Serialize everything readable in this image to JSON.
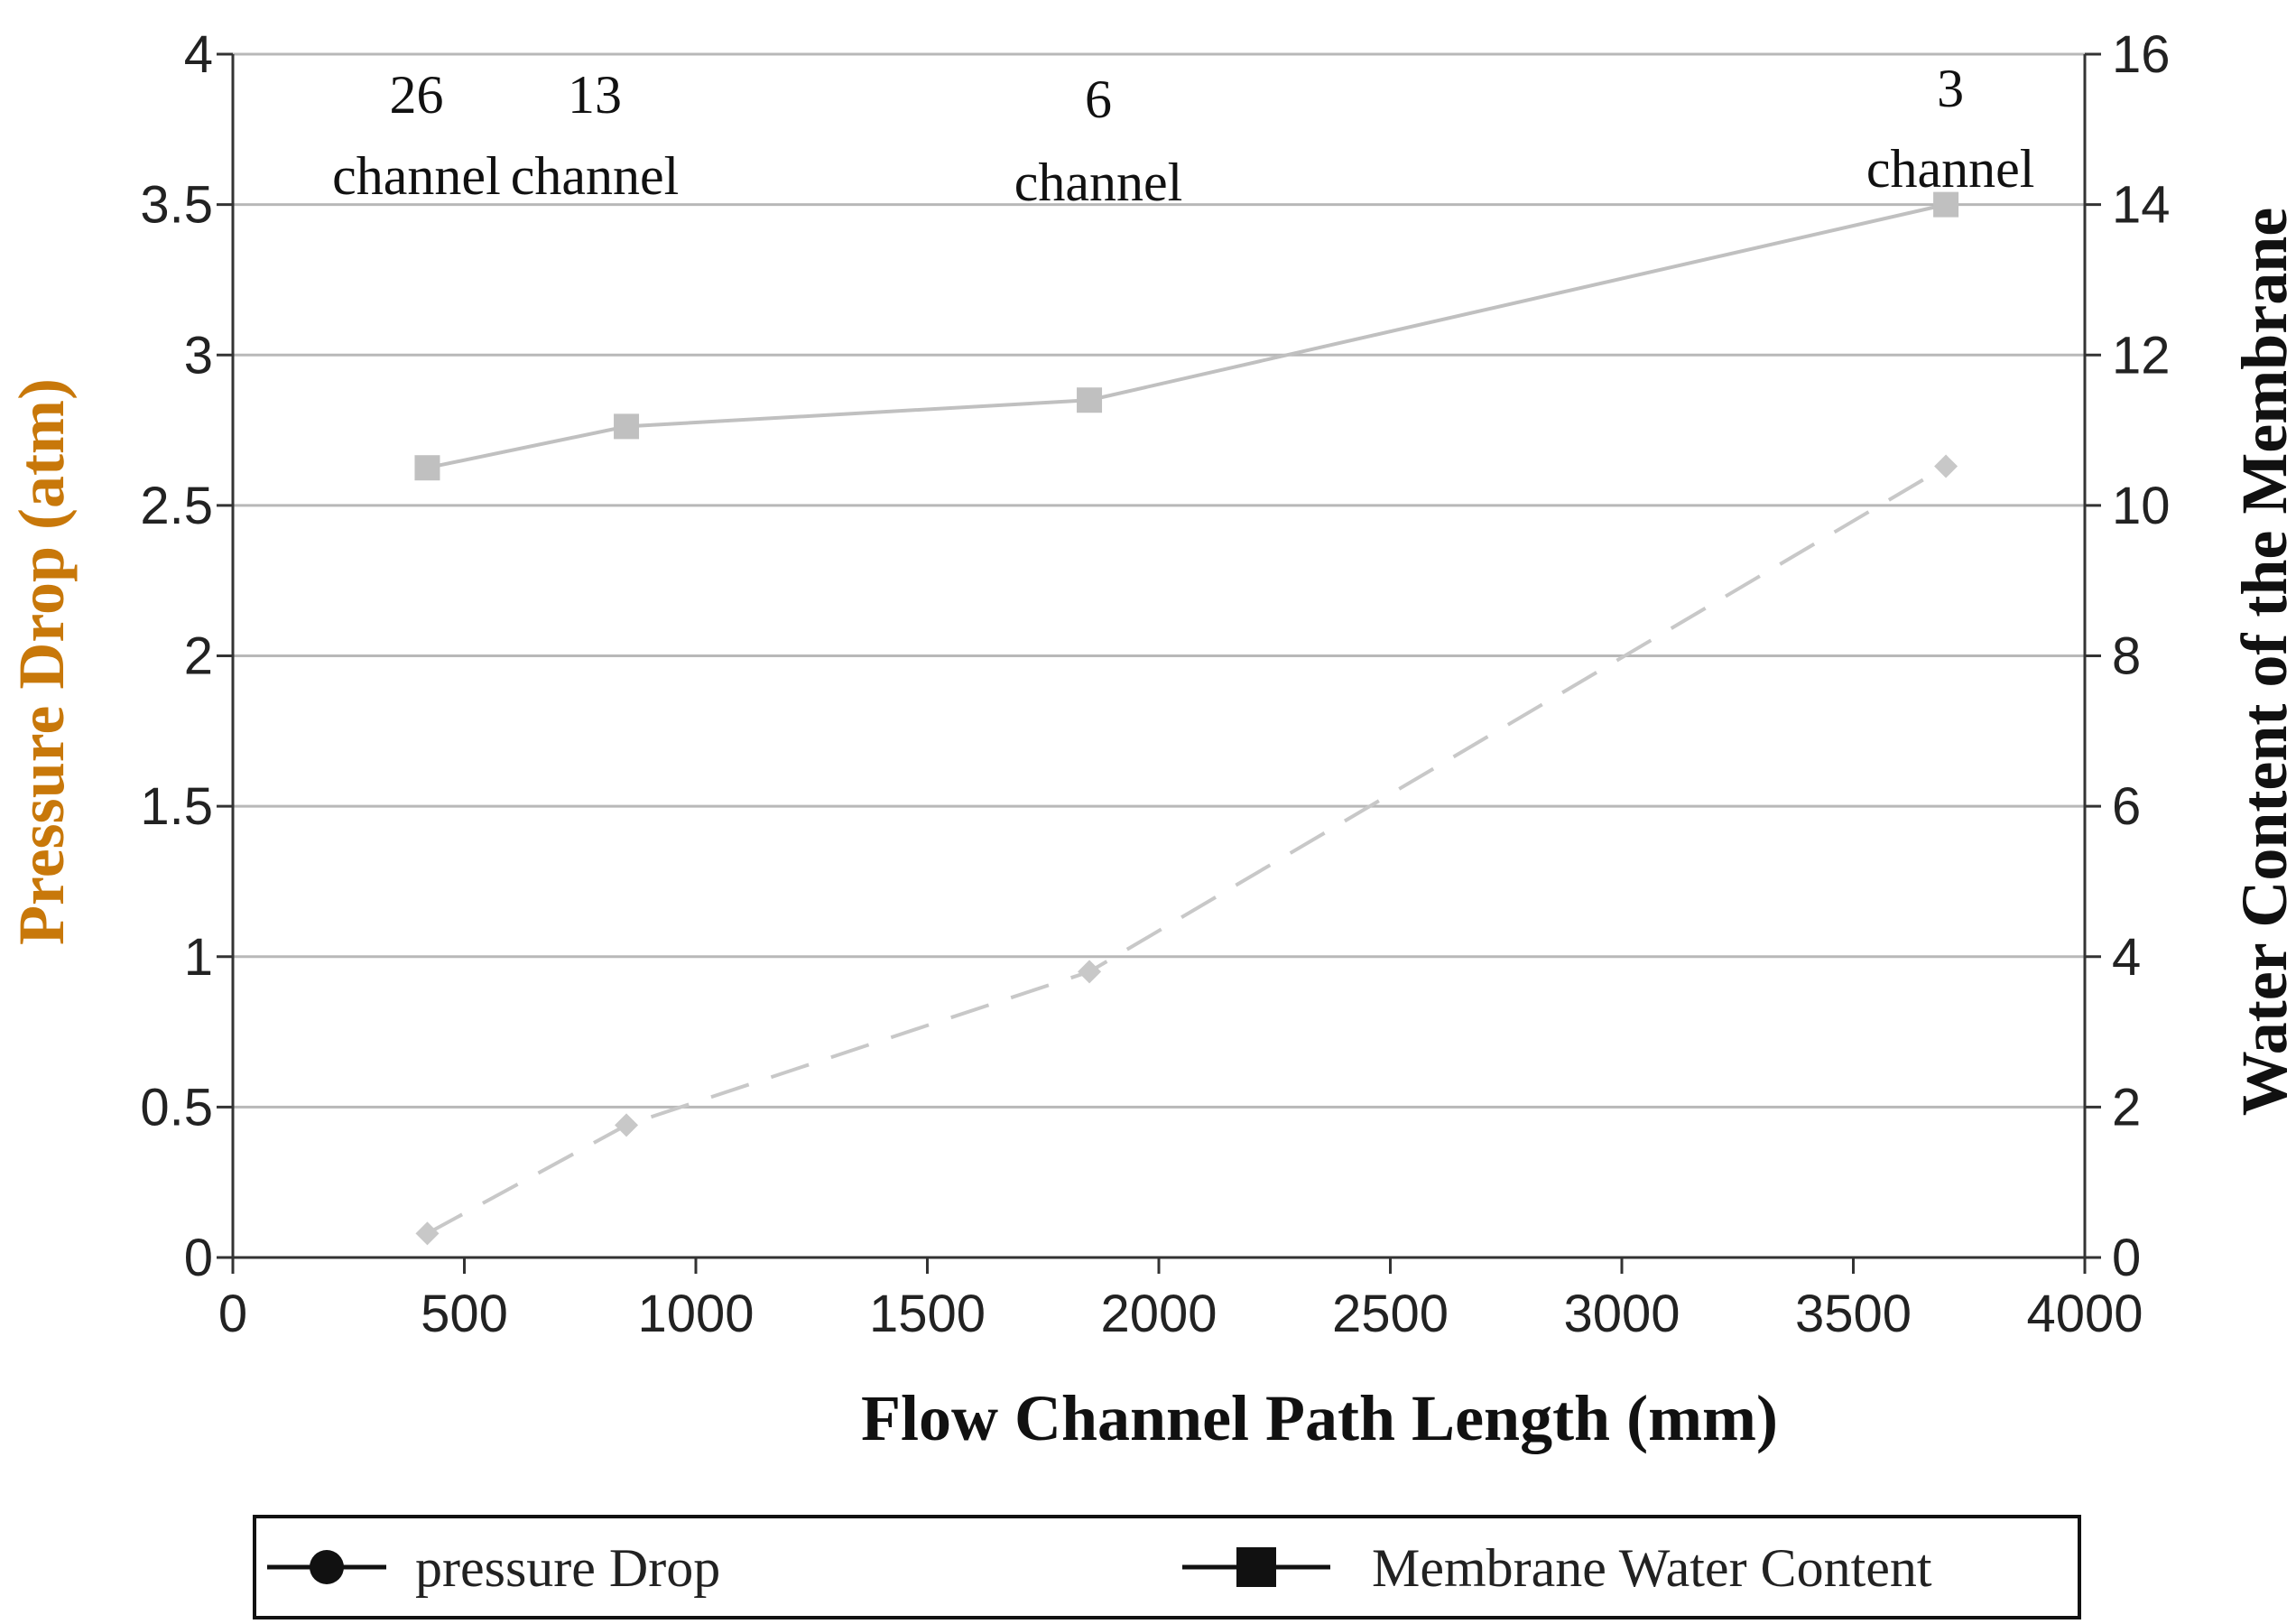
{
  "chart_data": {
    "type": "line",
    "xlabel": "Flow Channel Path Length (mm)",
    "ylabel_left": "Pressure Drop (atm)",
    "ylabel_right": "Water Content of the Membrane",
    "xlim": [
      0,
      4000
    ],
    "ylim_left": [
      0,
      4
    ],
    "ylim_right": [
      0,
      16
    ],
    "x_ticks": [
      "0",
      "500",
      "1000",
      "1500",
      "2000",
      "2500",
      "3000",
      "3500",
      "4000"
    ],
    "y_left_ticks": [
      "0",
      "0.5",
      "1",
      "1.5",
      "2",
      "2.5",
      "3",
      "3.5",
      "4"
    ],
    "y_right_ticks": [
      "0",
      "2",
      "4",
      "6",
      "8",
      "10",
      "12",
      "14",
      "16"
    ],
    "grid": true,
    "series": [
      {
        "name": "pressure Drop",
        "axis": "left",
        "style": "dashed",
        "marker": "diamond",
        "color": "#c8c8c8",
        "x": [
          420,
          850,
          1850,
          3700
        ],
        "y": [
          0.08,
          0.44,
          0.95,
          2.63
        ]
      },
      {
        "name": "Membrane Water Content",
        "axis": "right",
        "style": "solid",
        "marker": "square",
        "color": "#c0c0c0",
        "x": [
          420,
          850,
          1850,
          3700
        ],
        "y": [
          10.5,
          11.05,
          11.4,
          14
        ]
      }
    ],
    "annotations": [
      {
        "number": "26",
        "word": "channel",
        "x": 420
      },
      {
        "number": "13",
        "word": "channel",
        "x": 850
      },
      {
        "number": "6",
        "word": "channel",
        "x": 1850
      },
      {
        "number": "3",
        "word": "channel",
        "x": 3700
      }
    ],
    "legend_position": "bottom",
    "colors": {
      "axis_title_left": "#c8780a",
      "axis_title_right": "#111111",
      "axis_title_x": "#111111",
      "grid": "#b8b8b8",
      "axis": "#333333"
    }
  }
}
